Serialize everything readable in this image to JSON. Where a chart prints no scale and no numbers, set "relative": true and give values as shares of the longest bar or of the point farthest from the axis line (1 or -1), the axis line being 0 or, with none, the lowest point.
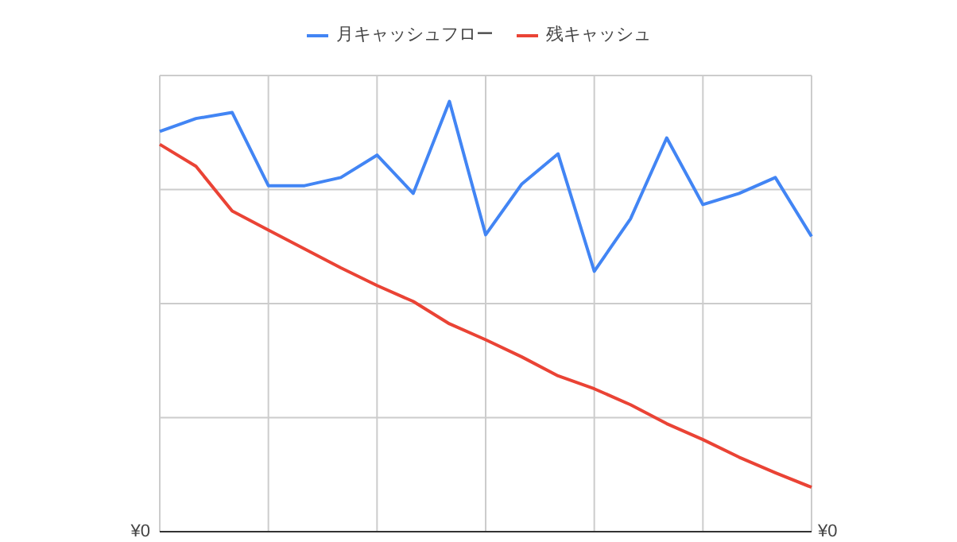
{
  "chart_data": {
    "type": "line",
    "relative": true,
    "legend": "top",
    "grid": true,
    "categories": [
      null,
      null,
      null,
      null,
      null,
      null,
      null,
      null,
      null,
      null,
      null,
      null,
      null,
      null,
      null,
      null,
      null,
      null,
      null
    ],
    "annotations": [
      "¥0",
      "¥0"
    ],
    "series": [
      {
        "name": "月キャッシュフロー",
        "color": "#4285f4",
        "values": [
          0.93,
          0.96,
          0.974,
          0.804,
          0.804,
          0.823,
          0.875,
          0.786,
          1.0,
          0.69,
          0.808,
          0.878,
          0.605,
          0.727,
          0.915,
          0.76,
          0.786,
          0.823,
          0.686
        ]
      },
      {
        "name": "残キャッシュ",
        "color": "#ea4335",
        "values": [
          0.9,
          0.849,
          0.745,
          0.701,
          0.657,
          0.613,
          0.572,
          0.535,
          0.483,
          0.446,
          0.406,
          0.362,
          0.332,
          0.295,
          0.251,
          0.214,
          0.173,
          0.137,
          0.103
        ]
      }
    ]
  }
}
